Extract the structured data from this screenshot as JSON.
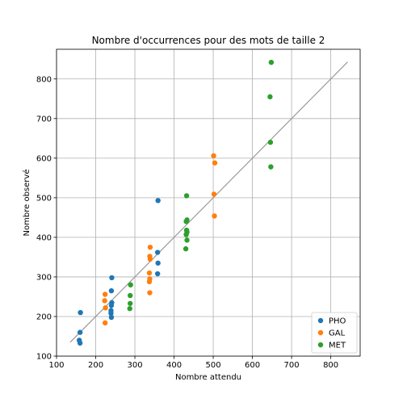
{
  "chart_data": {
    "type": "scatter",
    "title": "Nombre d'occurrences pour des mots de taille 2",
    "xlabel": "Nombre attendu",
    "ylabel": "Nombre observé",
    "xlim": [
      100,
      875
    ],
    "ylim": [
      100,
      875
    ],
    "xticks": [
      100,
      200,
      300,
      400,
      500,
      600,
      700,
      800
    ],
    "yticks": [
      100,
      200,
      300,
      400,
      500,
      600,
      700,
      800
    ],
    "grid": true,
    "legend": "bottom-right",
    "reference_line": {
      "x": [
        135,
        843
      ],
      "y": [
        135,
        843
      ],
      "color": "#999999"
    },
    "series": [
      {
        "name": "PHO",
        "color": "#1f77b4",
        "points": [
          [
            161,
            210
          ],
          [
            160,
            160
          ],
          [
            158,
            140
          ],
          [
            160,
            133
          ],
          [
            241,
            298
          ],
          [
            240,
            265
          ],
          [
            241,
            235
          ],
          [
            240,
            228
          ],
          [
            239,
            215
          ],
          [
            239,
            208
          ],
          [
            240,
            198
          ],
          [
            359,
            493
          ],
          [
            358,
            362
          ],
          [
            359,
            335
          ],
          [
            358,
            308
          ]
        ]
      },
      {
        "name": "GAL",
        "color": "#ff7f0e",
        "points": [
          [
            224,
            256
          ],
          [
            223,
            240
          ],
          [
            225,
            222
          ],
          [
            224,
            184
          ],
          [
            339,
            375
          ],
          [
            338,
            352
          ],
          [
            339,
            345
          ],
          [
            337,
            310
          ],
          [
            338,
            295
          ],
          [
            337,
            288
          ],
          [
            338,
            260
          ],
          [
            501,
            606
          ],
          [
            504,
            588
          ],
          [
            502,
            509
          ],
          [
            503,
            454
          ]
        ]
      },
      {
        "name": "MET",
        "color": "#2ca02c",
        "points": [
          [
            289,
            280
          ],
          [
            288,
            253
          ],
          [
            288,
            233
          ],
          [
            287,
            220
          ],
          [
            432,
            505
          ],
          [
            433,
            444
          ],
          [
            431,
            440
          ],
          [
            432,
            418
          ],
          [
            433,
            413
          ],
          [
            431,
            407
          ],
          [
            433,
            393
          ],
          [
            430,
            371
          ],
          [
            648,
            842
          ],
          [
            645,
            755
          ],
          [
            646,
            640
          ],
          [
            647,
            578
          ]
        ]
      }
    ]
  }
}
